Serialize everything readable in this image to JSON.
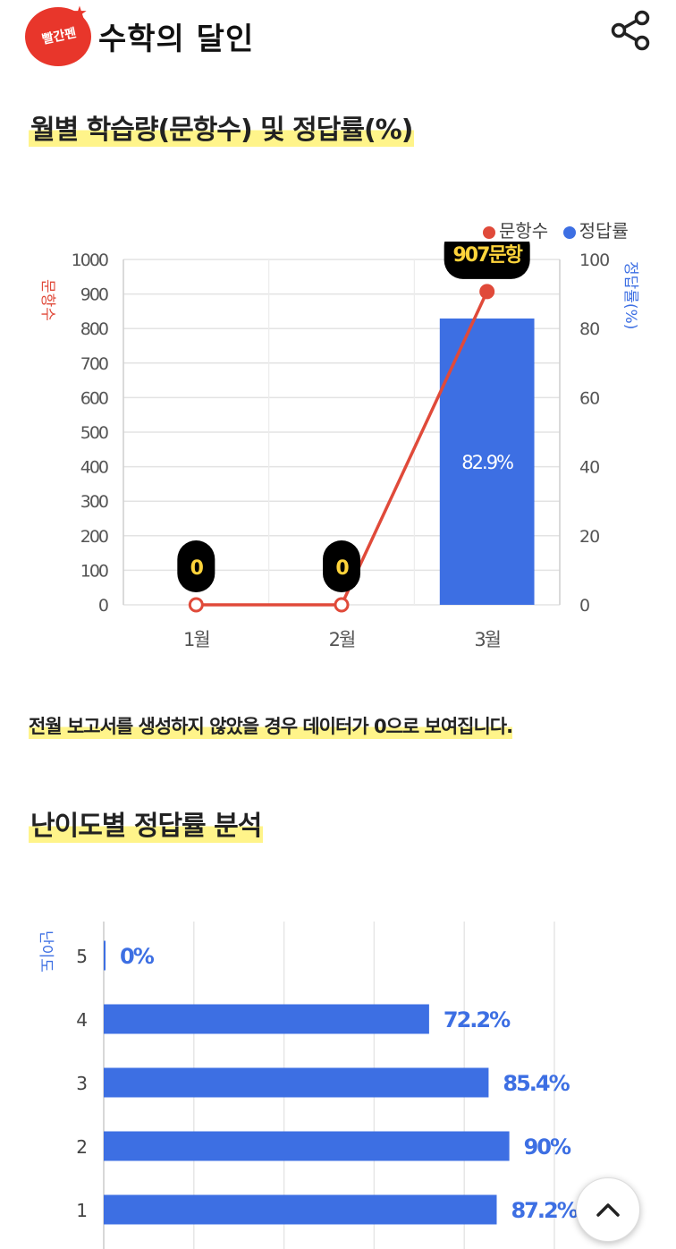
{
  "header": {
    "logo_text": "빨간펜",
    "app_title": "수학의 달인",
    "share_icon": "share-icon"
  },
  "section1": {
    "title": "월별 학습량(문항수) 및 정답률(%)",
    "note": "전월 보고서를 생성하지 않았을 경우 데이터가 0으로 보여집니다."
  },
  "section2": {
    "title": "난이도별 정답률 분석"
  },
  "chart_data": [
    {
      "type": "bar",
      "categories": [
        "1월",
        "2월",
        "3월"
      ],
      "series": [
        {
          "name": "문항수",
          "kind": "line",
          "axis": "left",
          "color": "#e04a3a",
          "values": [
            0,
            0,
            907
          ],
          "labels": [
            "0",
            "0",
            "907문항"
          ]
        },
        {
          "name": "정답률",
          "kind": "bar",
          "axis": "right",
          "color": "#3d6fe3",
          "values": [
            0,
            0,
            82.9
          ],
          "labels": [
            "",
            "",
            "82.9%"
          ]
        }
      ],
      "ylabel_left": "문항수",
      "ylabel_right": "정답률(%)",
      "ylim_left": [
        0,
        1000
      ],
      "ylim_right": [
        0,
        100
      ],
      "yticks_left": [
        "0",
        "100",
        "200",
        "300",
        "400",
        "500",
        "600",
        "700",
        "800",
        "900",
        "1000"
      ],
      "yticks_right": [
        "0",
        "20",
        "40",
        "60",
        "80",
        "100"
      ],
      "legend": "top-right",
      "grid": true
    },
    {
      "type": "bar",
      "orientation": "horizontal",
      "categories": [
        "5",
        "4",
        "3",
        "2",
        "1"
      ],
      "values": [
        0,
        72.2,
        85.4,
        90,
        87.2
      ],
      "labels": [
        "0%",
        "72.2%",
        "85.4%",
        "90%",
        "87.2%"
      ],
      "ylabel": "난이도",
      "xlim": [
        0,
        100
      ],
      "color": "#3d6fe3",
      "grid": true
    }
  ],
  "scroll_top_icon": "chevron-up-icon"
}
